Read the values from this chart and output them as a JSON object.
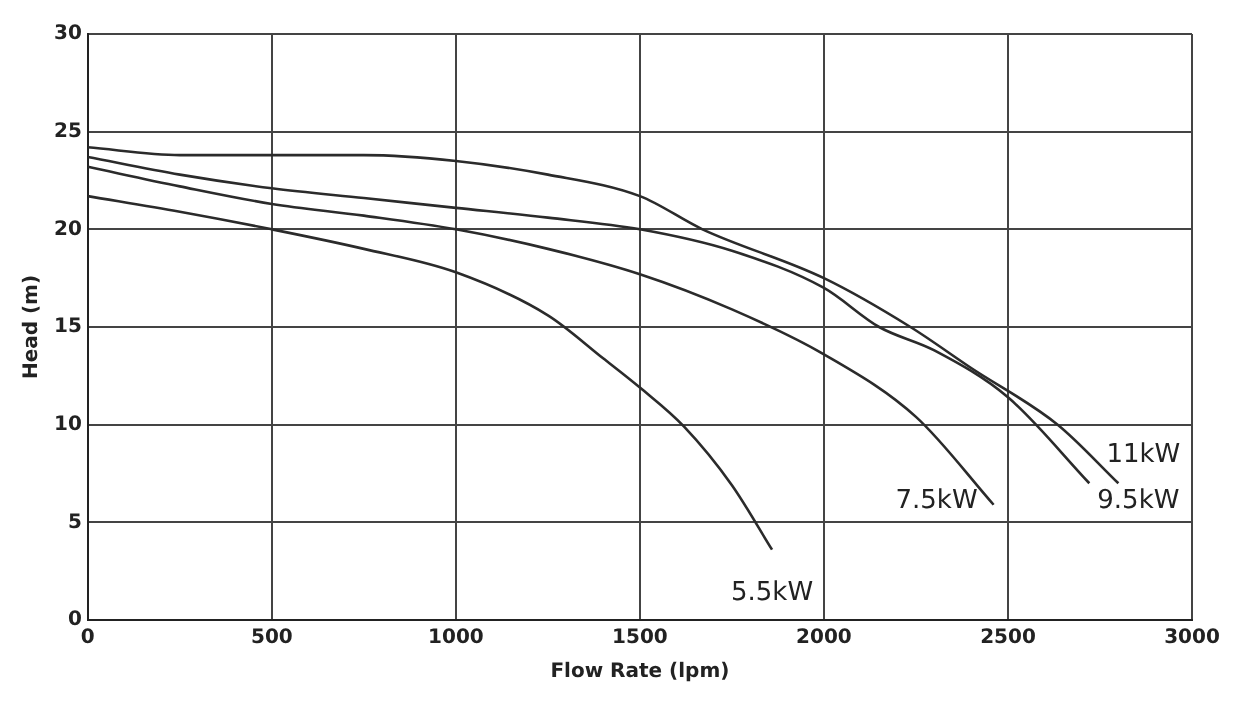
{
  "chart_data": {
    "type": "line",
    "xlabel": "Flow Rate (lpm)",
    "ylabel": "Head (m)",
    "xlim": [
      0,
      3000
    ],
    "xticks": [
      0,
      500,
      1000,
      1500,
      2000,
      2500,
      3000
    ],
    "ylim": [
      0,
      30
    ],
    "yticks": [
      0,
      5,
      10,
      15,
      20,
      25,
      30
    ],
    "grid": true,
    "legend": false,
    "marker": "none",
    "line_style": "solid",
    "series": [
      {
        "name": "5.5kW",
        "color": "#2b2b2b",
        "x": [
          0,
          250,
          500,
          750,
          1000,
          1250,
          1400,
          1500,
          1620,
          1750,
          1859
        ],
        "values": [
          21.7,
          20.9,
          20.0,
          19.0,
          17.8,
          15.6,
          13.4,
          11.9,
          9.9,
          6.9,
          3.6
        ]
      },
      {
        "name": "7.5kW",
        "color": "#2b2b2b",
        "x": [
          0,
          250,
          500,
          750,
          1000,
          1250,
          1500,
          1750,
          2000,
          2250,
          2461
        ],
        "values": [
          23.2,
          22.2,
          21.3,
          20.7,
          20.0,
          19.0,
          17.7,
          15.9,
          13.6,
          10.4,
          5.9
        ]
      },
      {
        "name": "9.5kW",
        "color": "#2b2b2b",
        "x": [
          0,
          250,
          500,
          750,
          1000,
          1250,
          1500,
          1750,
          2000,
          2150,
          2300,
          2500,
          2721
        ],
        "values": [
          23.7,
          22.8,
          22.1,
          21.6,
          21.1,
          20.6,
          20.0,
          18.9,
          17.0,
          15.0,
          13.8,
          11.4,
          7.0
        ]
      },
      {
        "name": "11kW",
        "color": "#2b2b2b",
        "x": [
          0,
          250,
          500,
          750,
          1000,
          1250,
          1500,
          1670,
          2000,
          2235,
          2400,
          2635,
          2800
        ],
        "values": [
          24.2,
          23.8,
          23.8,
          23.8,
          23.5,
          22.8,
          21.7,
          20.0,
          17.5,
          15.0,
          12.9,
          10.0,
          7.0
        ]
      }
    ]
  }
}
